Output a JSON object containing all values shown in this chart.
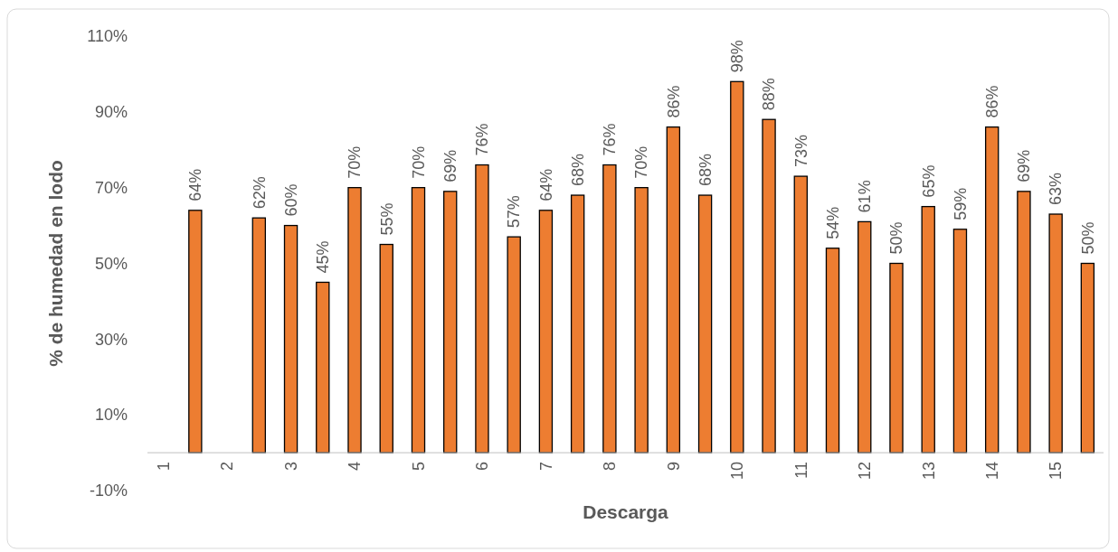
{
  "chart_data": {
    "type": "bar",
    "xlabel": "Descarga",
    "ylabel": "% de humedad en lodo",
    "categories": [
      "1",
      null,
      "2",
      null,
      "3",
      null,
      "4",
      null,
      "5",
      null,
      "6",
      null,
      "7",
      null,
      "8",
      null,
      "9",
      null,
      "10",
      null,
      "11",
      null,
      "12",
      null,
      "13",
      null,
      "14",
      null,
      "15",
      null
    ],
    "values": [
      null,
      64,
      null,
      62,
      60,
      45,
      70,
      55,
      70,
      69,
      76,
      57,
      64,
      68,
      76,
      70,
      86,
      68,
      98,
      88,
      73,
      54,
      61,
      50,
      65,
      59,
      86,
      69,
      63,
      50
    ],
    "value_labels": [
      null,
      "64%",
      null,
      "62%",
      "60%",
      "45%",
      "70%",
      "55%",
      "70%",
      "69%",
      "76%",
      "57%",
      "64%",
      "68%",
      "76%",
      "70%",
      "86%",
      "68%",
      "98%",
      "88%",
      "73%",
      "54%",
      "61%",
      "50%",
      "65%",
      "59%",
      "86%",
      "69%",
      "63%",
      "50%"
    ],
    "color": "#ed7d31",
    "ylim": [
      -10,
      110
    ],
    "yticks": [
      {
        "value": -10,
        "label": "-10%"
      },
      {
        "value": 10,
        "label": "10%"
      },
      {
        "value": 30,
        "label": "30%"
      },
      {
        "value": 50,
        "label": "50%"
      },
      {
        "value": 70,
        "label": "70%"
      },
      {
        "value": 90,
        "label": "90%"
      },
      {
        "value": 110,
        "label": "110%"
      }
    ],
    "grid": false
  }
}
